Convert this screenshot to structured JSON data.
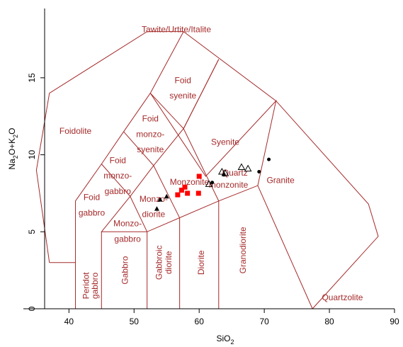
{
  "chart_data": {
    "type": "scatter",
    "title": "",
    "xlabel": "SiO",
    "xlabel_sub": "2",
    "ylabel_parts": [
      "Na",
      "2",
      "O+K",
      "2",
      "O"
    ],
    "xlim": [
      33,
      90
    ],
    "ylim": [
      0,
      19.5
    ],
    "x_ticks": [
      40,
      50,
      60,
      70,
      80,
      90
    ],
    "y_ticks": [
      0,
      5,
      10,
      15
    ],
    "grid": false,
    "field_color": "#a52a2a",
    "field_boundaries": [
      [
        [
          37,
          3
        ],
        [
          35,
          9
        ],
        [
          37,
          14
        ],
        [
          52,
          18
        ],
        [
          57.6,
          18
        ],
        [
          71.8,
          13.5
        ],
        [
          86,
          6.8
        ],
        [
          87.5,
          4.7
        ],
        [
          77.4,
          0
        ]
      ],
      [
        [
          41,
          0
        ],
        [
          41,
          7
        ],
        [
          45,
          9.4
        ],
        [
          48.4,
          11.5
        ],
        [
          52.5,
          14
        ],
        [
          57.6,
          11.7
        ],
        [
          63,
          16.2
        ]
      ],
      [
        [
          45,
          0
        ],
        [
          45,
          5
        ],
        [
          52,
          5
        ],
        [
          63,
          7
        ],
        [
          69,
          8
        ],
        [
          71.8,
          13.5
        ],
        [
          61,
          8.6
        ],
        [
          52.5,
          14
        ],
        [
          57.6,
          18
        ]
      ],
      [
        [
          45,
          9.4
        ],
        [
          49.4,
          7.3
        ],
        [
          52,
          5
        ]
      ],
      [
        [
          48.4,
          11.5
        ],
        [
          53,
          9.3
        ],
        [
          57,
          5.9
        ],
        [
          57,
          0
        ]
      ],
      [
        [
          57.6,
          11.7
        ],
        [
          53,
          9.3
        ],
        [
          49.4,
          7.3
        ],
        [
          45,
          5
        ]
      ],
      [
        [
          41,
          3
        ],
        [
          37,
          3
        ]
      ],
      [
        [
          52,
          0
        ],
        [
          52,
          5
        ]
      ],
      [
        [
          63,
          0
        ],
        [
          63,
          7
        ],
        [
          57.6,
          11.7
        ],
        [
          63,
          16.2
        ]
      ],
      [
        [
          69,
          8
        ],
        [
          77.4,
          0
        ]
      ]
    ],
    "field_labels": [
      {
        "text": "Tawite/Urtite/Italite",
        "x": 56.5,
        "y": 18.1
      },
      {
        "text": "Foid",
        "x": 57.5,
        "y": 14.8
      },
      {
        "text": "syenite",
        "x": 57.5,
        "y": 13.8
      },
      {
        "text": "Foidolite",
        "x": 41,
        "y": 11.5
      },
      {
        "text": "Foid",
        "x": 52.5,
        "y": 12.3
      },
      {
        "text": "monzo-",
        "x": 52.5,
        "y": 11.3
      },
      {
        "text": "syenite",
        "x": 52.5,
        "y": 10.3
      },
      {
        "text": "Syenite",
        "x": 64,
        "y": 10.8
      },
      {
        "text": "Foid",
        "x": 47.5,
        "y": 9.6
      },
      {
        "text": "monzo-",
        "x": 47.5,
        "y": 8.6
      },
      {
        "text": "gabbro",
        "x": 47.5,
        "y": 7.6
      },
      {
        "text": "Monzonite",
        "x": 58.5,
        "y": 8.2
      },
      {
        "text": "Quartz",
        "x": 65.5,
        "y": 8.8
      },
      {
        "text": "monzonite",
        "x": 64.5,
        "y": 8.0
      },
      {
        "text": "Granite",
        "x": 72.5,
        "y": 8.3
      },
      {
        "text": "Foid",
        "x": 43.5,
        "y": 7.2
      },
      {
        "text": "gabbro",
        "x": 43.5,
        "y": 6.2
      },
      {
        "text": "Monzo-",
        "x": 53,
        "y": 7.1
      },
      {
        "text": "diorite",
        "x": 53,
        "y": 6.1
      },
      {
        "text": "Monzo-",
        "x": 49,
        "y": 5.5
      },
      {
        "text": "gabbro",
        "x": 49,
        "y": 4.5
      },
      {
        "text": "Quartzolite",
        "x": 82,
        "y": 0.7
      }
    ],
    "field_labels_vertical": [
      {
        "text": "Peridot",
        "x": 42.7,
        "y": 1.5
      },
      {
        "text": "gabbro",
        "x": 44.1,
        "y": 1.5
      },
      {
        "text": "Gabbro",
        "x": 48.7,
        "y": 2.5
      },
      {
        "text": "Gabbroic",
        "x": 53.9,
        "y": 3.0
      },
      {
        "text": "diorite",
        "x": 55.4,
        "y": 3.0
      },
      {
        "text": "Diorite",
        "x": 60.4,
        "y": 3.0
      },
      {
        "text": "Granodiorite",
        "x": 66.8,
        "y": 3.8
      }
    ],
    "series": [
      {
        "marker": "square",
        "color": "#ff0000",
        "x": [
          60.0,
          57.3,
          57.8,
          58.2,
          56.7,
          59.9
        ],
        "y": [
          8.6,
          7.7,
          7.9,
          7.5,
          7.4,
          7.5
        ]
      },
      {
        "marker": "triangle-filled",
        "color": "#000000",
        "x": [
          54.0,
          55.0,
          53.5
        ],
        "y": [
          7.1,
          7.3,
          6.5
        ]
      },
      {
        "marker": "triangle-open",
        "color": "#000000",
        "x": [
          63.5,
          64.0,
          66.5,
          67.5,
          61.5
        ],
        "y": [
          8.9,
          8.8,
          9.2,
          9.1,
          8.1
        ]
      },
      {
        "marker": "dot",
        "color": "#000000",
        "x": [
          69.2,
          70.7,
          63.8,
          62.0
        ],
        "y": [
          8.9,
          9.7,
          8.7,
          8.2
        ]
      }
    ]
  }
}
